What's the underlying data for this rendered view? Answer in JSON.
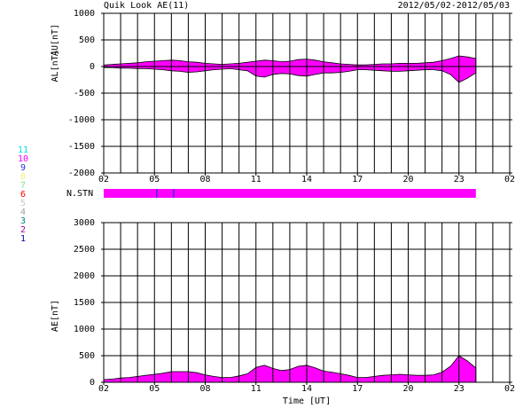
{
  "chart_data": [
    {
      "type": "area",
      "title": "Quik Look AE(11)",
      "subtitle": "2012/05/02-2012/05/03",
      "x": [
        2,
        2.5,
        3,
        3.5,
        4,
        4.5,
        5,
        5.5,
        6,
        6.5,
        7,
        7.5,
        8,
        8.5,
        9,
        9.5,
        10,
        10.5,
        11,
        11.5,
        12,
        12.5,
        13,
        13.5,
        14,
        14.5,
        15,
        15.5,
        16,
        16.5,
        17,
        17.5,
        18,
        18.5,
        19,
        19.5,
        20,
        20.5,
        21,
        21.5,
        22,
        22.5,
        23,
        23.5,
        24
      ],
      "series": [
        {
          "name": "AU[nT]",
          "color": "#ff00ff",
          "values": [
            30,
            40,
            50,
            60,
            70,
            90,
            100,
            110,
            120,
            110,
            90,
            80,
            60,
            50,
            40,
            50,
            60,
            80,
            100,
            120,
            110,
            90,
            100,
            130,
            140,
            120,
            90,
            70,
            50,
            40,
            30,
            30,
            40,
            50,
            50,
            60,
            60,
            60,
            70,
            80,
            110,
            150,
            200,
            180,
            150
          ]
        },
        {
          "name": "AL[nT]",
          "color": "#ff00ff",
          "values": [
            -20,
            -20,
            -30,
            -30,
            -40,
            -40,
            -50,
            -60,
            -80,
            -90,
            -110,
            -100,
            -80,
            -60,
            -50,
            -40,
            -60,
            -80,
            -180,
            -200,
            -150,
            -130,
            -140,
            -170,
            -180,
            -150,
            -120,
            -120,
            -110,
            -90,
            -60,
            -60,
            -70,
            -80,
            -90,
            -90,
            -80,
            -70,
            -60,
            -60,
            -80,
            -150,
            -300,
            -220,
            -120
          ]
        }
      ],
      "xlim": [
        2,
        26
      ],
      "xticks": [
        {
          "value": 2,
          "label": "02"
        },
        {
          "value": 5,
          "label": "05"
        },
        {
          "value": 8,
          "label": "08"
        },
        11,
        14,
        17,
        20,
        23,
        {
          "value": 26,
          "label": "02"
        }
      ],
      "xgrid": [
        3,
        4,
        6,
        7,
        9,
        10,
        12,
        13,
        15,
        16,
        18,
        19,
        21,
        22,
        24,
        25
      ],
      "ylim": [
        -2000,
        1000
      ],
      "yticks": [
        -2000,
        -1500,
        -1000,
        -500,
        0,
        500,
        1000
      ]
    },
    {
      "type": "strip",
      "label": "N.STN",
      "xlim": [
        2,
        26
      ],
      "segments": [
        {
          "start": 2,
          "end": 24,
          "value": 10
        },
        {
          "start": 5.1,
          "end": 5.17,
          "value": 9
        },
        {
          "start": 6.1,
          "end": 6.17,
          "value": 9
        }
      ],
      "scale": [
        {
          "value": 11,
          "color": "#00e0e0"
        },
        {
          "value": 10,
          "color": "#ff00ff"
        },
        {
          "value": 9,
          "color": "#3030d0"
        },
        {
          "value": 8,
          "color": "#f0f080"
        },
        {
          "value": 7,
          "color": "#80e080"
        },
        {
          "value": 6,
          "color": "#ff0000"
        },
        {
          "value": 5,
          "color": "#c8c8c8"
        },
        {
          "value": 4,
          "color": "#a0a0a0"
        },
        {
          "value": 3,
          "color": "#008080"
        },
        {
          "value": 2,
          "color": "#a000a0"
        },
        {
          "value": 1,
          "color": "#0000a0"
        }
      ]
    },
    {
      "type": "area",
      "xlabel": "Time [UT]",
      "x": [
        2,
        2.5,
        3,
        3.5,
        4,
        4.5,
        5,
        5.5,
        6,
        6.5,
        7,
        7.5,
        8,
        8.5,
        9,
        9.5,
        10,
        10.5,
        11,
        11.5,
        12,
        12.5,
        13,
        13.5,
        14,
        14.5,
        15,
        15.5,
        16,
        16.5,
        17,
        17.5,
        18,
        18.5,
        19,
        19.5,
        20,
        20.5,
        21,
        21.5,
        22,
        22.5,
        23,
        23.5,
        24
      ],
      "series": [
        {
          "name": "AE[nT]",
          "color": "#ff00ff",
          "values": [
            50,
            60,
            80,
            90,
            110,
            130,
            150,
            170,
            200,
            200,
            200,
            180,
            140,
            110,
            90,
            90,
            120,
            160,
            280,
            320,
            260,
            220,
            240,
            300,
            320,
            270,
            210,
            190,
            160,
            130,
            90,
            90,
            110,
            130,
            140,
            150,
            140,
            130,
            130,
            140,
            190,
            300,
            500,
            400,
            270
          ]
        }
      ],
      "xlim": [
        2,
        26
      ],
      "xticks": [
        {
          "value": 2,
          "label": "02"
        },
        {
          "value": 5,
          "label": "05"
        },
        {
          "value": 8,
          "label": "08"
        },
        11,
        14,
        17,
        20,
        23,
        {
          "value": 26,
          "label": "02"
        }
      ],
      "xgrid": [
        3,
        4,
        6,
        7,
        9,
        10,
        12,
        13,
        15,
        16,
        18,
        19,
        21,
        22,
        24,
        25
      ],
      "ylim": [
        0,
        3000
      ],
      "yticks": [
        0,
        500,
        1000,
        1500,
        2000,
        2500,
        3000
      ]
    }
  ]
}
